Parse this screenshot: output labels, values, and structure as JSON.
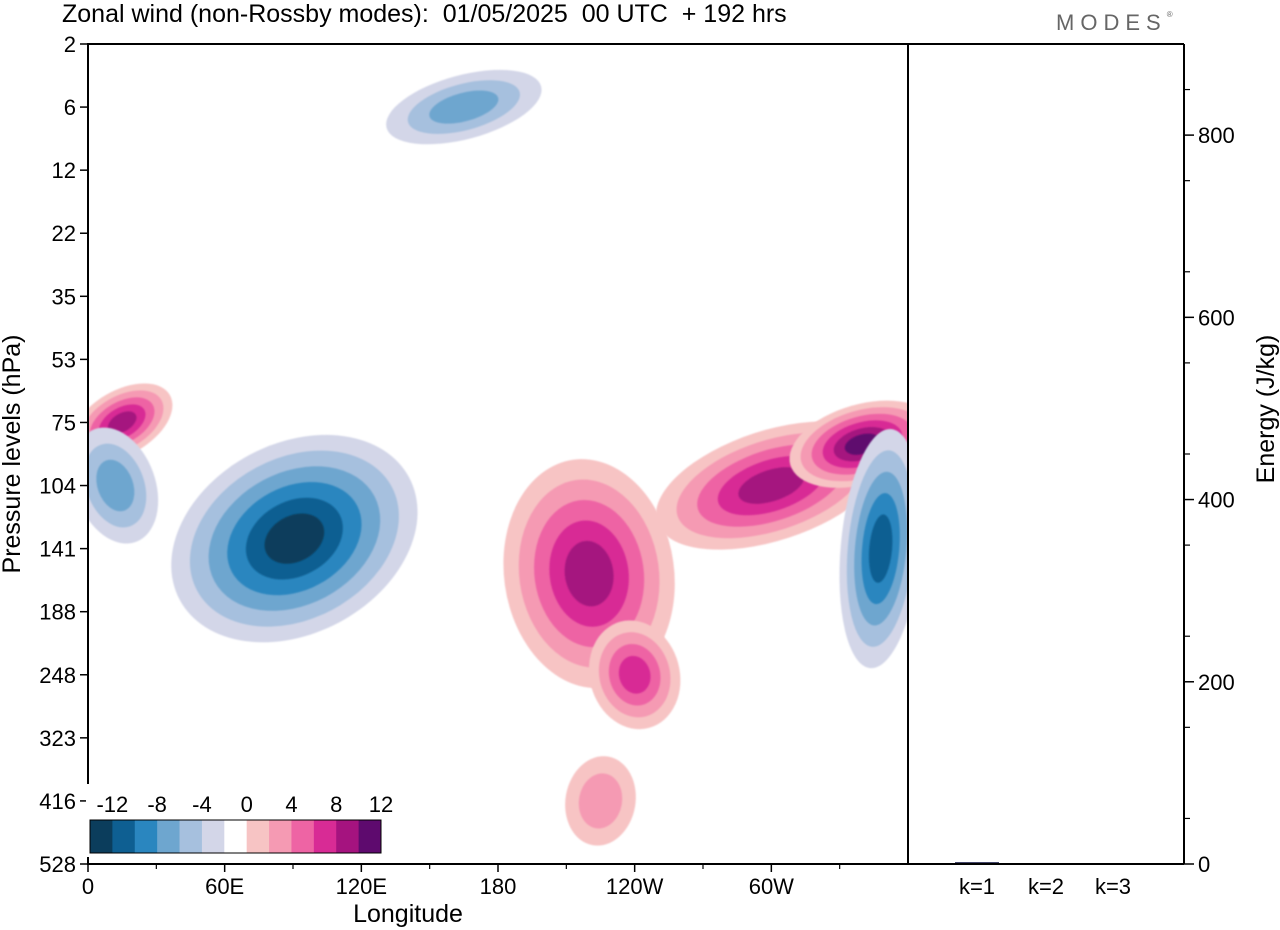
{
  "title": "Zonal wind (non-Rossby modes):  01/05/2025  00 UTC  + 192 hrs",
  "logo": "MODES",
  "chart_data": [
    {
      "type": "heatmap",
      "xlabel": "Longitude",
      "ylabel": "Pressure levels (hPa)",
      "x_ticks": [
        "0",
        "60E",
        "120E",
        "180",
        "120W",
        "60W"
      ],
      "x_tick_values": [
        0,
        60,
        120,
        180,
        240,
        300
      ],
      "xlim": [
        0,
        360
      ],
      "y_ticks": [
        "2",
        "6",
        "12",
        "22",
        "35",
        "53",
        "75",
        "104",
        "141",
        "188",
        "248",
        "323",
        "416",
        "528"
      ],
      "colorbar": {
        "labels": [
          "-12",
          "-8",
          "-4",
          "0",
          "4",
          "8",
          "12"
        ],
        "levels": [
          -14,
          -12,
          -10,
          -8,
          -6,
          -4,
          -2,
          2,
          4,
          6,
          8,
          10,
          12,
          14
        ],
        "colors": [
          "#0b3d5c",
          "#0e5f92",
          "#2a86bf",
          "#6ea6cf",
          "#a6c0de",
          "#d3d6e8",
          "#ffffff",
          "#f7c4c4",
          "#f59ab3",
          "#ee64a4",
          "#d82b95",
          "#a5137f",
          "#5e0a6e"
        ]
      },
      "features": [
        {
          "lon": 95,
          "level": "141",
          "value": -12
        },
        {
          "lon": 15,
          "level": "75",
          "value": 10
        },
        {
          "lon": 220,
          "level": "141",
          "value": 9
        },
        {
          "lon": 240,
          "level": "248",
          "value": 7
        },
        {
          "lon": 300,
          "level": "104",
          "value": 9
        },
        {
          "lon": 340,
          "level": "85",
          "value": 11
        },
        {
          "lon": 348,
          "level": "141",
          "value": -10
        },
        {
          "lon": 12,
          "level": "104",
          "value": -6
        },
        {
          "lon": 165,
          "level": "6",
          "value": -6
        },
        {
          "lon": 225,
          "level": "416",
          "value": 4
        }
      ]
    },
    {
      "type": "bar",
      "ylabel": "Energy (J/kg)",
      "categories": [
        "k=1",
        "k=2",
        "k=3"
      ],
      "values": [
        2,
        1,
        0.5
      ],
      "y_ticks": [
        "0",
        "200",
        "400",
        "600",
        "800"
      ],
      "ylim": [
        0,
        900
      ]
    }
  ]
}
